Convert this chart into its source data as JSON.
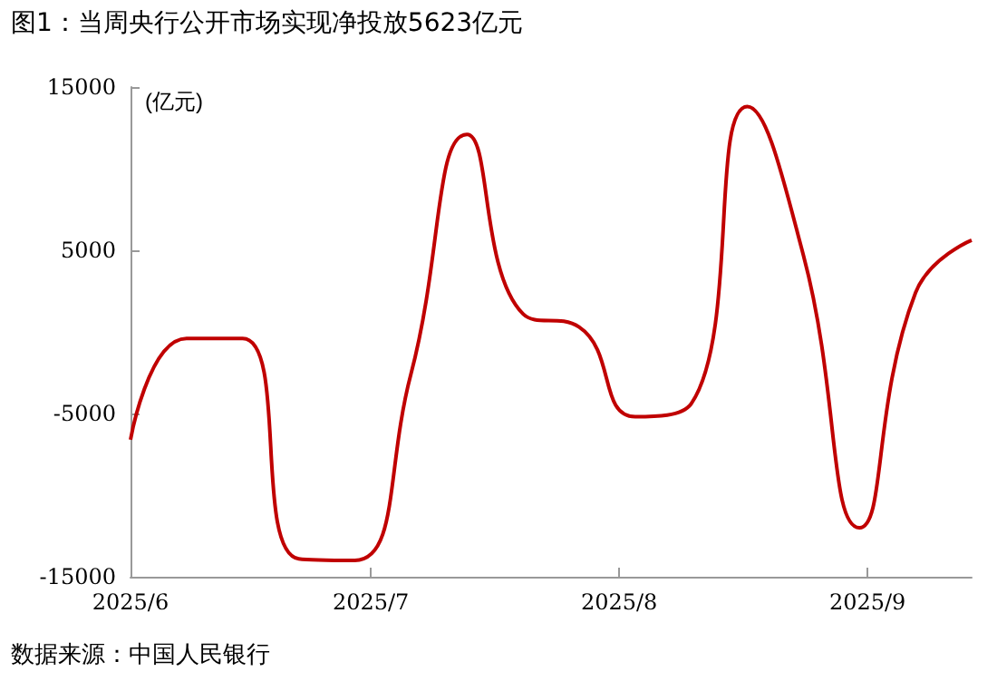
{
  "chart_data": {
    "type": "line",
    "title": "图1：当周央行公开市场实现净投放5623亿元",
    "ylabel": "(亿元)",
    "annotations": [
      "数据来源：中国人民银行"
    ],
    "x": [
      "2025-06-01",
      "2025-06-08",
      "2025-06-15",
      "2025-06-22",
      "2025-06-29",
      "2025-07-06",
      "2025-07-13",
      "2025-07-20",
      "2025-07-27",
      "2025-08-03",
      "2025-08-10",
      "2025-08-17",
      "2025-08-24",
      "2025-08-31",
      "2025-09-07",
      "2025-09-14"
    ],
    "series": [
      {
        "color": "#c00000",
        "values": [
          -6600,
          -400,
          -400,
          -13900,
          -14000,
          -2600,
          12100,
          1100,
          300,
          -5200,
          -4400,
          13800,
          4700,
          -12000,
          2400,
          5623
        ]
      }
    ],
    "xlim": [
      "2025-06-01",
      "2025-09-14"
    ],
    "xticks": [
      {
        "value": "2025-06-01",
        "label": "2025/6"
      },
      {
        "value": "2025-07-01",
        "label": "2025/7"
      },
      {
        "value": "2025-08-01",
        "label": "2025/8"
      },
      {
        "value": "2025-09-01",
        "label": "2025/9"
      }
    ],
    "ylim": [
      -15000,
      15000
    ],
    "yticks": [
      -15000,
      -5000,
      5000,
      15000
    ],
    "grid": false,
    "marker": "none",
    "line_style": "solid"
  }
}
